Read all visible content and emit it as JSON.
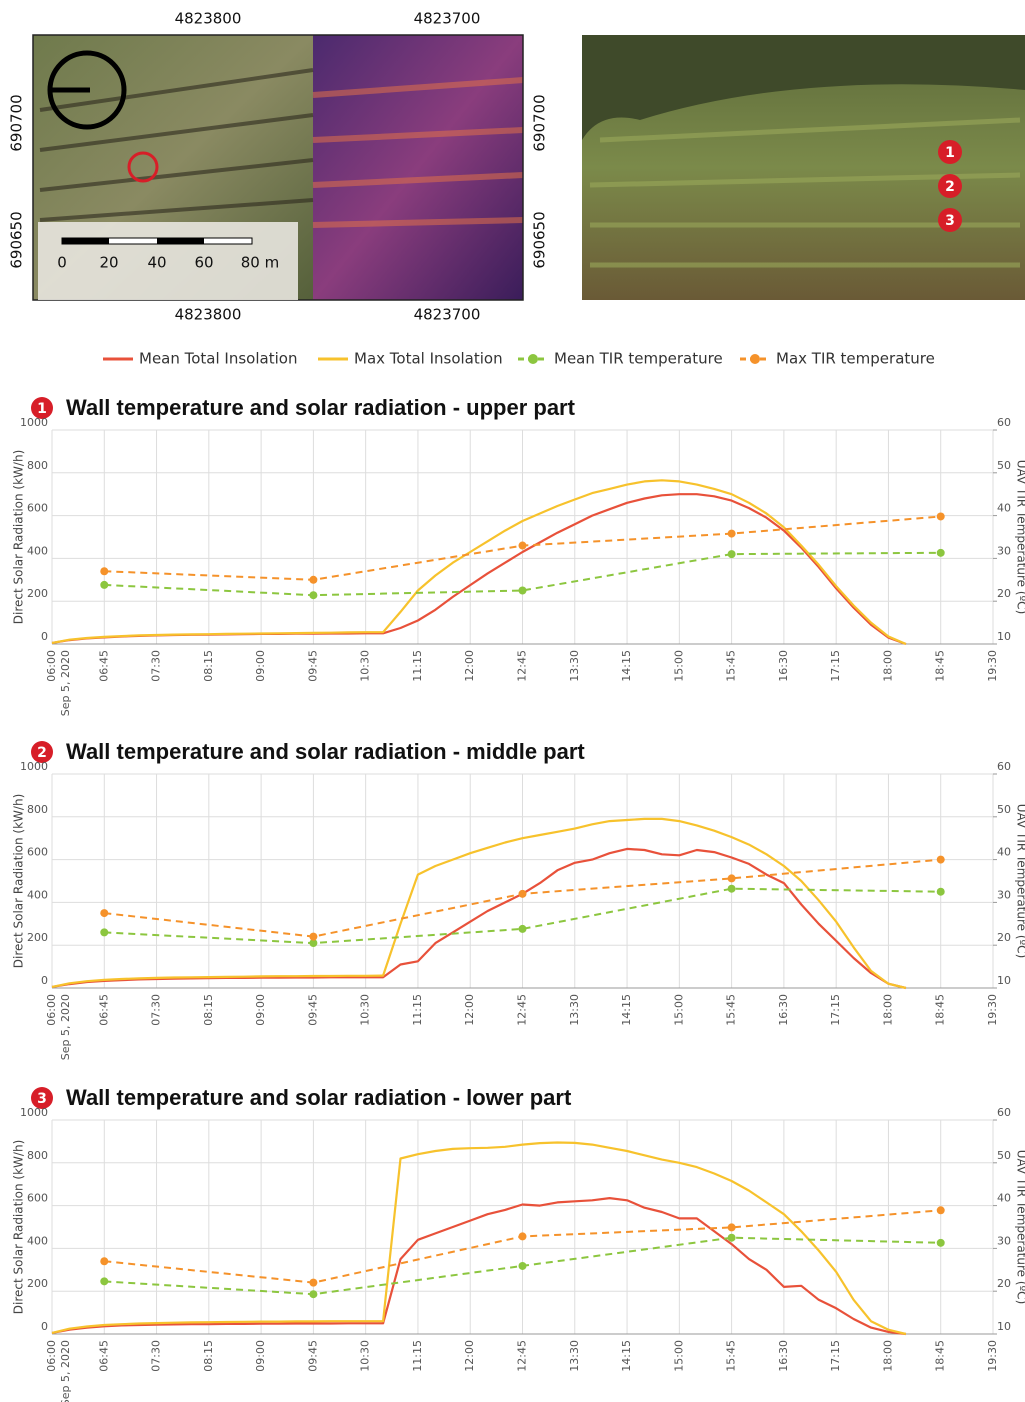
{
  "map": {
    "top_ticks": [
      "4823800",
      "4823700"
    ],
    "bottom_ticks": [
      "4823800",
      "4823700"
    ],
    "left_ticks": [
      "690700",
      "690650"
    ],
    "right_ticks": [
      "690700",
      "690650"
    ],
    "scale_labels": [
      "0",
      "20",
      "40",
      "60",
      "80 m"
    ]
  },
  "photo": {
    "markers": [
      "1",
      "2",
      "3"
    ]
  },
  "legend": [
    {
      "name": "Mean Total Insolation",
      "color": "#e8513a",
      "dashed": false,
      "marker": false
    },
    {
      "name": "Max Total Insolation",
      "color": "#f7c22c",
      "dashed": false,
      "marker": false
    },
    {
      "name": "Mean TIR temperature",
      "color": "#8cc63f",
      "dashed": true,
      "marker": true
    },
    {
      "name": "Max TIR temperature",
      "color": "#f5922a",
      "dashed": true,
      "marker": true
    }
  ],
  "chart_data": [
    {
      "type": "line",
      "badge": "1",
      "title": "Wall temperature and solar radiation - upper part",
      "y_label": "Direct Solar Radiation (kW/h)",
      "y2_label": "UAV TIR Temperature (ºC)",
      "x_sublabel": "Sep 5, 2020",
      "xlim": [
        "06:00",
        "19:30"
      ],
      "xticks": [
        "06:00",
        "06:45",
        "07:30",
        "08:15",
        "09:00",
        "09:45",
        "10:30",
        "11:15",
        "12:00",
        "12:45",
        "13:30",
        "14:15",
        "15:00",
        "15:45",
        "16:30",
        "17:15",
        "18:00",
        "18:45",
        "19:30"
      ],
      "ylim": [
        0,
        1000
      ],
      "yticks": [
        0,
        200,
        400,
        600,
        800,
        1000
      ],
      "y2lim": [
        10,
        60
      ],
      "y2ticks": [
        10,
        20,
        30,
        40,
        50,
        60
      ],
      "grid": true,
      "x": [
        "06:00",
        "06:15",
        "06:30",
        "06:45",
        "07:00",
        "07:15",
        "07:30",
        "07:45",
        "08:00",
        "08:15",
        "08:30",
        "08:45",
        "09:00",
        "09:15",
        "09:30",
        "09:45",
        "10:00",
        "10:15",
        "10:30",
        "10:45",
        "11:00",
        "11:15",
        "11:30",
        "11:45",
        "12:00",
        "12:15",
        "12:30",
        "12:45",
        "13:00",
        "13:15",
        "13:30",
        "13:45",
        "14:00",
        "14:15",
        "14:30",
        "14:45",
        "15:00",
        "15:15",
        "15:30",
        "15:45",
        "16:00",
        "16:15",
        "16:30",
        "16:45",
        "17:00",
        "17:15",
        "17:30",
        "17:45",
        "18:00",
        "18:15"
      ],
      "series": [
        {
          "color": "#e8513a",
          "values": [
            5,
            18,
            26,
            31,
            35,
            38,
            40,
            42,
            43,
            44,
            45,
            46,
            47,
            47,
            48,
            48,
            49,
            49,
            50,
            50,
            75,
            110,
            160,
            220,
            275,
            330,
            380,
            430,
            475,
            520,
            560,
            600,
            630,
            660,
            680,
            695,
            700,
            700,
            690,
            670,
            635,
            590,
            530,
            450,
            360,
            260,
            170,
            90,
            30,
            0
          ]
        },
        {
          "color": "#f7c22c",
          "values": [
            5,
            20,
            28,
            33,
            37,
            40,
            42,
            44,
            45,
            46,
            47,
            48,
            49,
            50,
            51,
            52,
            53,
            54,
            55,
            55,
            150,
            250,
            320,
            380,
            430,
            480,
            530,
            575,
            610,
            645,
            675,
            705,
            725,
            745,
            760,
            765,
            760,
            745,
            725,
            700,
            660,
            610,
            545,
            460,
            370,
            270,
            180,
            100,
            35,
            0
          ]
        },
        {
          "color": "#8cc63f",
          "axis": "y2",
          "dashed": true,
          "x": [
            "06:45",
            "09:45",
            "12:45",
            "15:45",
            "18:45"
          ],
          "values": [
            23.8,
            21.4,
            22.5,
            31,
            31.3
          ]
        },
        {
          "color": "#f5922a",
          "axis": "y2",
          "dashed": true,
          "x": [
            "06:45",
            "09:45",
            "12:45",
            "15:45",
            "18:45"
          ],
          "values": [
            27,
            25,
            33,
            35.8,
            39.8
          ]
        }
      ]
    },
    {
      "type": "line",
      "badge": "2",
      "title": "Wall temperature and solar radiation - middle part",
      "y_label": "Direct Solar Radiation (kW/h)",
      "y2_label": "UAV TIR Temperature (ºC)",
      "x_sublabel": "Sep 5, 2020",
      "xlim": [
        "06:00",
        "19:30"
      ],
      "xticks": [
        "06:00",
        "06:45",
        "07:30",
        "08:15",
        "09:00",
        "09:45",
        "10:30",
        "11:15",
        "12:00",
        "12:45",
        "13:30",
        "14:15",
        "15:00",
        "15:45",
        "16:30",
        "17:15",
        "18:00",
        "18:45",
        "19:30"
      ],
      "ylim": [
        0,
        1000
      ],
      "yticks": [
        0,
        200,
        400,
        600,
        800,
        1000
      ],
      "y2lim": [
        10,
        60
      ],
      "y2ticks": [
        10,
        20,
        30,
        40,
        50,
        60
      ],
      "grid": true,
      "x": [
        "06:00",
        "06:15",
        "06:30",
        "06:45",
        "07:00",
        "07:15",
        "07:30",
        "07:45",
        "08:00",
        "08:15",
        "08:30",
        "08:45",
        "09:00",
        "09:15",
        "09:30",
        "09:45",
        "10:00",
        "10:15",
        "10:30",
        "10:45",
        "11:00",
        "11:15",
        "11:30",
        "11:45",
        "12:00",
        "12:15",
        "12:30",
        "12:45",
        "13:00",
        "13:15",
        "13:30",
        "13:45",
        "14:00",
        "14:15",
        "14:30",
        "14:45",
        "15:00",
        "15:15",
        "15:30",
        "15:45",
        "16:00",
        "16:15",
        "16:30",
        "16:45",
        "17:00",
        "17:15",
        "17:30",
        "17:45",
        "18:00",
        "18:15"
      ],
      "series": [
        {
          "color": "#e8513a",
          "values": [
            5,
            18,
            28,
            33,
            37,
            40,
            42,
            44,
            45,
            46,
            47,
            47,
            48,
            48,
            49,
            49,
            50,
            50,
            50,
            50,
            110,
            125,
            210,
            260,
            310,
            360,
            400,
            440,
            490,
            550,
            585,
            600,
            630,
            650,
            645,
            625,
            620,
            645,
            635,
            610,
            580,
            530,
            490,
            390,
            300,
            220,
            140,
            70,
            20,
            0
          ]
        },
        {
          "color": "#f7c22c",
          "values": [
            5,
            22,
            32,
            38,
            42,
            45,
            47,
            49,
            50,
            51,
            52,
            53,
            54,
            55,
            55,
            56,
            56,
            57,
            57,
            58,
            300,
            530,
            570,
            600,
            630,
            655,
            680,
            700,
            715,
            730,
            745,
            765,
            780,
            785,
            790,
            790,
            780,
            760,
            735,
            705,
            670,
            625,
            570,
            500,
            410,
            310,
            190,
            80,
            20,
            0
          ]
        },
        {
          "color": "#8cc63f",
          "axis": "y2",
          "dashed": true,
          "x": [
            "06:45",
            "09:45",
            "12:45",
            "15:45",
            "18:45"
          ],
          "values": [
            23,
            20.5,
            23.8,
            33.2,
            32.5
          ]
        },
        {
          "color": "#f5922a",
          "axis": "y2",
          "dashed": true,
          "x": [
            "06:45",
            "09:45",
            "12:45",
            "15:45",
            "18:45"
          ],
          "values": [
            27.5,
            22,
            32,
            35.6,
            40
          ]
        }
      ]
    },
    {
      "type": "line",
      "badge": "3",
      "title": "Wall temperature and solar radiation - lower part",
      "y_label": "Direct Solar Radiation (kW/h)",
      "y2_label": "UAV TIR Temperature (ºC)",
      "x_sublabel": "Sep 5, 2020",
      "xlim": [
        "06:00",
        "19:30"
      ],
      "xticks": [
        "06:00",
        "06:45",
        "07:30",
        "08:15",
        "09:00",
        "09:45",
        "10:30",
        "11:15",
        "12:00",
        "12:45",
        "13:30",
        "14:15",
        "15:00",
        "15:45",
        "16:30",
        "17:15",
        "18:00",
        "18:45",
        "19:30"
      ],
      "ylim": [
        0,
        1000
      ],
      "yticks": [
        0,
        200,
        400,
        600,
        800,
        1000
      ],
      "y2lim": [
        10,
        60
      ],
      "y2ticks": [
        10,
        20,
        30,
        40,
        50,
        60
      ],
      "grid": true,
      "x": [
        "06:00",
        "06:15",
        "06:30",
        "06:45",
        "07:00",
        "07:15",
        "07:30",
        "07:45",
        "08:00",
        "08:15",
        "08:30",
        "08:45",
        "09:00",
        "09:15",
        "09:30",
        "09:45",
        "10:00",
        "10:15",
        "10:30",
        "10:45",
        "11:00",
        "11:15",
        "11:30",
        "11:45",
        "12:00",
        "12:15",
        "12:30",
        "12:45",
        "13:00",
        "13:15",
        "13:30",
        "13:45",
        "14:00",
        "14:15",
        "14:30",
        "14:45",
        "15:00",
        "15:15",
        "15:30",
        "15:45",
        "16:00",
        "16:15",
        "16:30",
        "16:45",
        "17:00",
        "17:15",
        "17:30",
        "17:45",
        "18:00",
        "18:15"
      ],
      "series": [
        {
          "color": "#e8513a",
          "values": [
            5,
            20,
            30,
            36,
            40,
            42,
            44,
            45,
            46,
            46,
            47,
            47,
            48,
            48,
            49,
            49,
            49,
            50,
            50,
            50,
            350,
            440,
            470,
            500,
            530,
            560,
            580,
            605,
            600,
            615,
            620,
            625,
            635,
            625,
            590,
            570,
            540,
            540,
            480,
            420,
            350,
            300,
            220,
            225,
            160,
            120,
            70,
            30,
            10,
            0
          ]
        },
        {
          "color": "#f7c22c",
          "values": [
            5,
            25,
            35,
            42,
            46,
            49,
            51,
            53,
            54,
            55,
            56,
            57,
            58,
            58,
            59,
            59,
            60,
            60,
            60,
            60,
            820,
            840,
            855,
            865,
            868,
            870,
            875,
            885,
            892,
            895,
            893,
            885,
            870,
            855,
            835,
            815,
            800,
            780,
            750,
            715,
            670,
            615,
            560,
            480,
            390,
            290,
            160,
            60,
            20,
            0
          ]
        },
        {
          "color": "#8cc63f",
          "axis": "y2",
          "dashed": true,
          "x": [
            "06:45",
            "09:45",
            "12:45",
            "15:45",
            "18:45"
          ],
          "values": [
            22.3,
            19.3,
            25.9,
            32.5,
            31.3
          ]
        },
        {
          "color": "#f5922a",
          "axis": "y2",
          "dashed": true,
          "x": [
            "06:45",
            "09:45",
            "12:45",
            "15:45",
            "18:45"
          ],
          "values": [
            27,
            22,
            32.8,
            34.9,
            38.9
          ]
        }
      ]
    }
  ]
}
